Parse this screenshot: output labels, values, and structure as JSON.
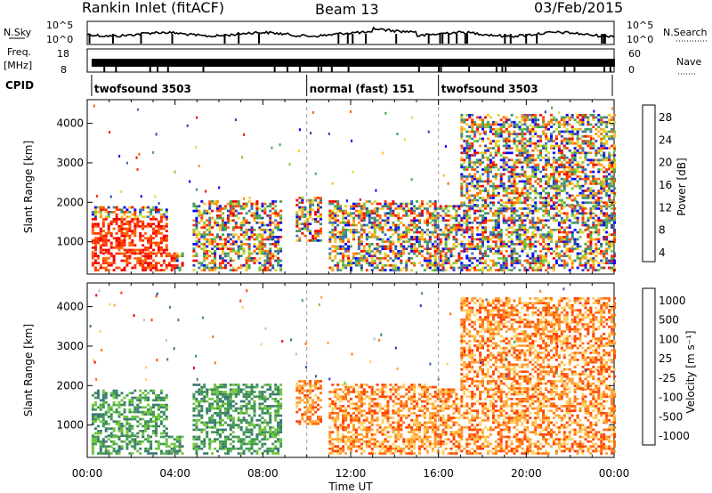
{
  "header": {
    "station": "Rankin Inlet (fitACF)",
    "beam": "Beam 13",
    "date": "03/Feb/2015"
  },
  "panels": {
    "nsky_label": "N.Sky",
    "nsky_ticks": [
      "10^5",
      "10^0"
    ],
    "nsearch_label": "N.Search",
    "nsearch_ticks": [
      "10^5",
      "10^0"
    ],
    "freq_label_1": "Freq.",
    "freq_label_2": "[MHz]",
    "freq_ticks": [
      "18",
      "8"
    ],
    "nave_label": "Nave",
    "nave_ticks": [
      "60",
      "0"
    ],
    "cpid_label": "CPID",
    "cpid_segments": [
      {
        "label": "twofsound 3503",
        "start_h": 0.2,
        "end_h": 10.0
      },
      {
        "label": "normal (fast) 151",
        "start_h": 10.0,
        "end_h": 16.0
      },
      {
        "label": "twofsound 3503",
        "start_h": 16.0,
        "end_h": 24.0
      }
    ]
  },
  "chart_data": [
    {
      "type": "heatmap",
      "name": "power",
      "ylabel": "Slant Range [km]",
      "ylim": [
        180,
        4600
      ],
      "y_ticks": [
        1000,
        2000,
        3000,
        4000
      ],
      "xlim": [
        0,
        24
      ],
      "colorbar": {
        "label": "Power [dB]",
        "ticks": [
          "28",
          "24",
          "20",
          "16",
          "12",
          "8",
          "4"
        ],
        "colors": [
          "#0000ff",
          "#2a3fa8",
          "#3d6fb0",
          "#3e8d7a",
          "#4aa64a",
          "#7ec63a",
          "#d8d830",
          "#ffc020",
          "#ff9010",
          "#ff6000",
          "#ff3000",
          "#f00000"
        ]
      }
    },
    {
      "type": "heatmap",
      "name": "velocity",
      "xlabel": "Time UT",
      "ylabel": "Slant Range [km]",
      "ylim": [
        180,
        4600
      ],
      "y_ticks": [
        1000,
        2000,
        3000,
        4000
      ],
      "xlim": [
        0,
        24
      ],
      "x_ticks": [
        "00:00",
        "04:00",
        "08:00",
        "12:00",
        "16:00",
        "20:00",
        "00:00"
      ],
      "colorbar": {
        "label": "Velocity [m s⁻¹]",
        "ticks": [
          "1000",
          "500",
          "100",
          "25",
          "-25",
          "-100",
          "-500",
          "-1000"
        ],
        "colors": [
          "#2040c0",
          "#2f5fa0",
          "#3a7a70",
          "#3f9a50",
          "#6fc43f",
          "#c0c0c0",
          "#ffd060",
          "#ffa030",
          "#ff7010",
          "#ff4000",
          "#f00000"
        ]
      }
    }
  ]
}
